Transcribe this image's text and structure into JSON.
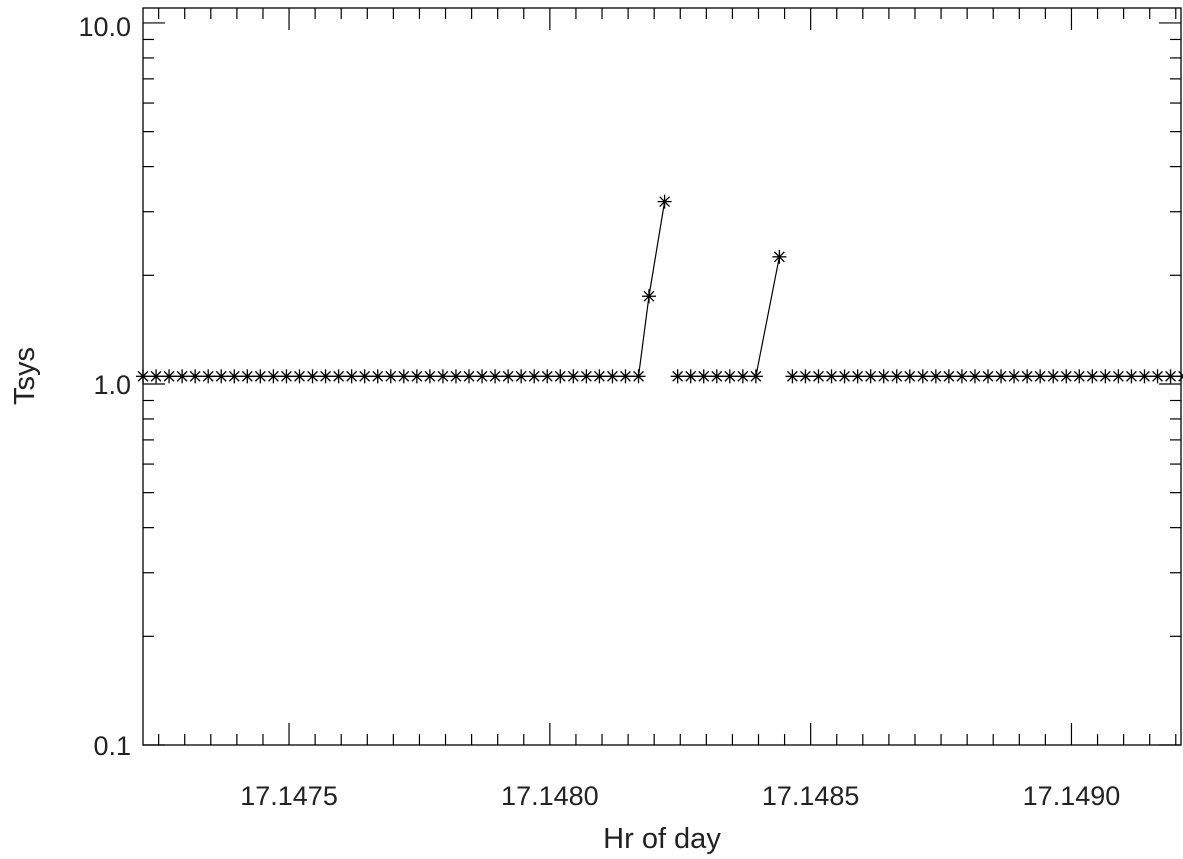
{
  "chart_data": {
    "type": "line",
    "title": "",
    "xlabel": "Hr of day",
    "ylabel": "Tsys",
    "x_scale": "linear",
    "y_scale": "log",
    "xlim": [
      17.14722,
      17.14921
    ],
    "ylim": [
      0.1,
      11
    ],
    "x_ticks": [
      "17.1475",
      "17.1480",
      "17.1485",
      "17.1490"
    ],
    "y_ticks": [
      "0.1",
      "1.0",
      "10.0"
    ],
    "grid": false,
    "marker": "asterisk",
    "line_color": "#000000",
    "series": [
      {
        "segments": [
          {
            "x": [
              17.14722,
              17.147245,
              17.14727,
              17.147295,
              17.14732,
              17.147345,
              17.14737,
              17.147395,
              17.14742,
              17.147445,
              17.14747,
              17.147495,
              17.14752,
              17.147545,
              17.14757,
              17.147595,
              17.14762,
              17.147645,
              17.14767,
              17.147695,
              17.14772,
              17.147745,
              17.14777,
              17.147795,
              17.14782,
              17.147845,
              17.14787,
              17.147895,
              17.14792,
              17.147945,
              17.14797,
              17.147995,
              17.14802,
              17.148045,
              17.14807,
              17.148095,
              17.14812,
              17.148145,
              17.14817,
              17.14819,
              17.14822
            ],
            "y": [
              1.05,
              1.05,
              1.05,
              1.05,
              1.05,
              1.05,
              1.05,
              1.05,
              1.05,
              1.05,
              1.05,
              1.05,
              1.05,
              1.05,
              1.05,
              1.05,
              1.05,
              1.05,
              1.05,
              1.05,
              1.05,
              1.05,
              1.05,
              1.05,
              1.05,
              1.05,
              1.05,
              1.05,
              1.05,
              1.05,
              1.05,
              1.05,
              1.05,
              1.05,
              1.05,
              1.05,
              1.05,
              1.05,
              1.05,
              1.75,
              3.2
            ]
          },
          {
            "x": [
              17.148245,
              17.14827,
              17.148295,
              17.14832,
              17.148345,
              17.14837,
              17.148395,
              17.14844
            ],
            "y": [
              1.05,
              1.05,
              1.05,
              1.05,
              1.05,
              1.05,
              1.05,
              2.25
            ]
          },
          {
            "x": [
              17.148465,
              17.14849,
              17.148515,
              17.14854,
              17.148565,
              17.14859,
              17.148615,
              17.14864,
              17.148665,
              17.14869,
              17.148715,
              17.14874,
              17.148765,
              17.14879,
              17.148815,
              17.14884,
              17.148865,
              17.14889,
              17.148915,
              17.14894,
              17.148965,
              17.14899,
              17.149015,
              17.14904,
              17.149065,
              17.14909,
              17.149115,
              17.14914,
              17.149165,
              17.14919,
              17.149215
            ],
            "y": [
              1.05,
              1.05,
              1.05,
              1.05,
              1.05,
              1.05,
              1.05,
              1.05,
              1.05,
              1.05,
              1.05,
              1.05,
              1.05,
              1.05,
              1.05,
              1.05,
              1.05,
              1.05,
              1.05,
              1.05,
              1.05,
              1.05,
              1.05,
              1.05,
              1.05,
              1.05,
              1.05,
              1.05,
              1.05,
              1.05,
              1.05
            ]
          }
        ]
      }
    ]
  }
}
